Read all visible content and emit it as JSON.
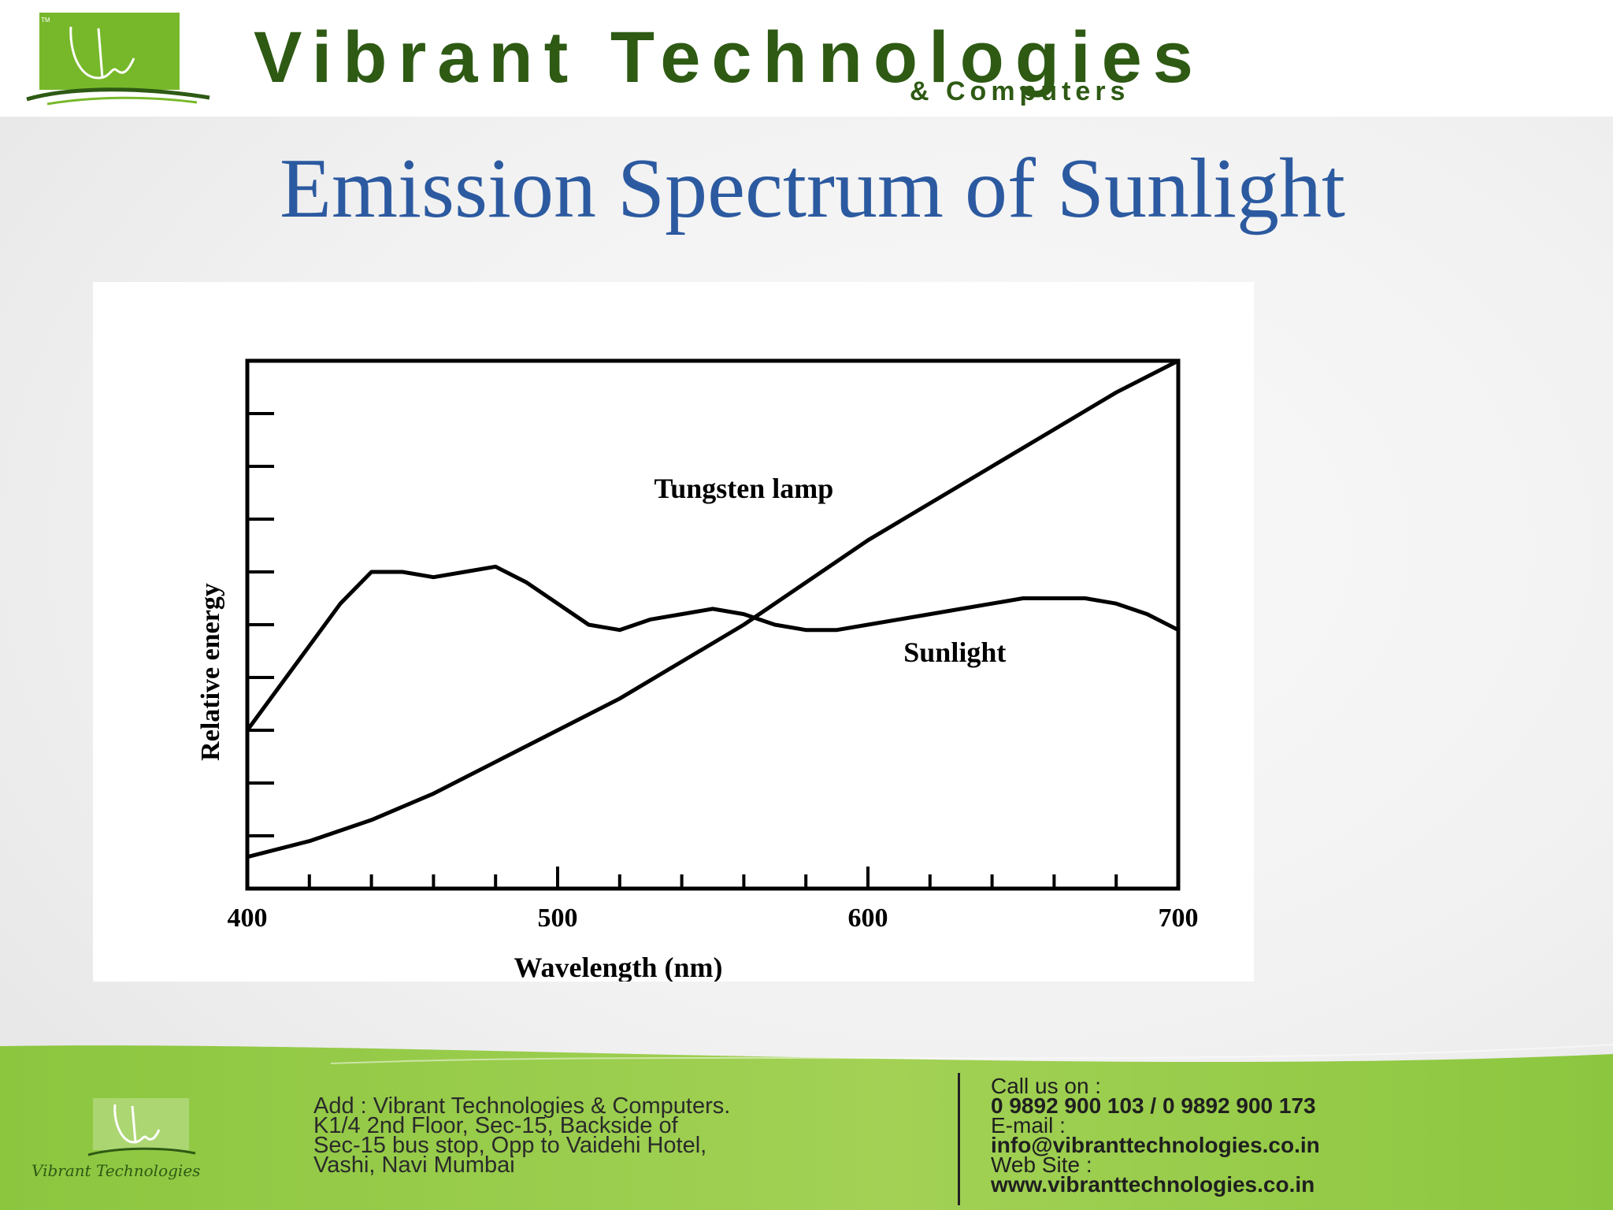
{
  "header": {
    "brand_name": "Vibrant Technologies",
    "brand_sub": "& Computers",
    "tm": "TM"
  },
  "slide": {
    "title": "Emission Spectrum of Sunlight"
  },
  "chart_data": {
    "type": "line",
    "title": "",
    "xlabel": "Wavelength (nm)",
    "ylabel": "Relative energy",
    "xlim": [
      400,
      700
    ],
    "ylim": [
      0,
      10
    ],
    "x_tick_labels": [
      "400",
      "500",
      "600",
      "700"
    ],
    "y_ticks_labeled": false,
    "grid": false,
    "series": [
      {
        "name": "Tungsten lamp",
        "x": [
          400,
          420,
          440,
          460,
          480,
          500,
          520,
          540,
          560,
          580,
          600,
          620,
          640,
          660,
          680,
          700
        ],
        "y": [
          0.6,
          0.9,
          1.3,
          1.8,
          2.4,
          3.0,
          3.6,
          4.3,
          5.0,
          5.8,
          6.6,
          7.3,
          8.0,
          8.7,
          9.4,
          10.0
        ]
      },
      {
        "name": "Sunlight",
        "x": [
          400,
          410,
          420,
          430,
          440,
          450,
          460,
          470,
          480,
          490,
          500,
          510,
          520,
          530,
          540,
          550,
          560,
          570,
          580,
          590,
          600,
          610,
          620,
          630,
          640,
          650,
          660,
          670,
          680,
          690,
          700
        ],
        "y": [
          3.0,
          3.8,
          4.6,
          5.4,
          6.0,
          6.0,
          5.9,
          6.0,
          6.1,
          5.8,
          5.4,
          5.0,
          4.9,
          5.1,
          5.2,
          5.3,
          5.2,
          5.0,
          4.9,
          4.9,
          5.0,
          5.1,
          5.2,
          5.3,
          5.4,
          5.5,
          5.5,
          5.5,
          5.4,
          5.2,
          4.9
        ]
      }
    ],
    "annotations": [
      "Tungsten lamp",
      "Sunlight"
    ],
    "line_color": "#000000"
  },
  "footer": {
    "brand": "Vibrant Technologies",
    "address_lines": [
      "Add : Vibrant Technologies & Computers.",
      "K1/4 2nd Floor, Sec-15, Backside of",
      "Sec-15 bus stop, Opp to Vaidehi Hotel,",
      "Vashi, Navi Mumbai"
    ],
    "call_label": "Call us on :",
    "phones": "0 9892 900 103 /  0 9892 900 173",
    "email_label": "E-mail :",
    "email": "info@vibranttechnologies.co.in",
    "web_label": " Web Site :",
    "website": "www.vibranttechnologies.co.in"
  },
  "colors": {
    "brand_green": "#2e5a14",
    "logo_green": "#77b82a",
    "footer_green": "#8cc63f",
    "title_blue": "#2c5aa0"
  }
}
